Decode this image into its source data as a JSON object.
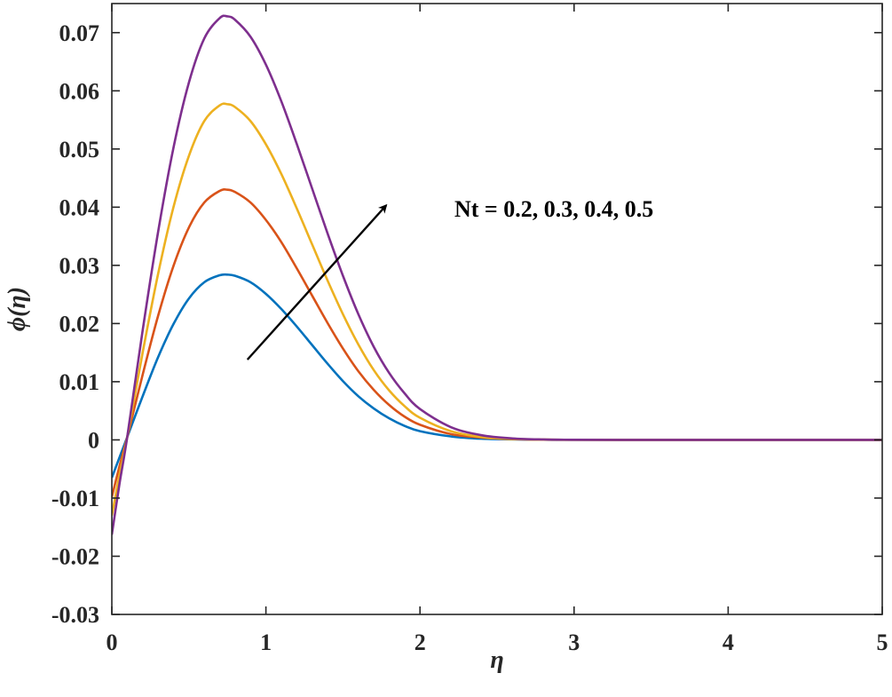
{
  "chart_data": {
    "type": "line",
    "title": "",
    "xlabel": "η",
    "ylabel": "ϕ(η)",
    "xlim": [
      0,
      5
    ],
    "ylim": [
      -0.03,
      0.075
    ],
    "x_ticks": [
      0,
      1,
      2,
      3,
      4,
      5
    ],
    "x_tick_labels": [
      "0",
      "1",
      "2",
      "3",
      "4",
      "5"
    ],
    "y_ticks": [
      -0.03,
      -0.02,
      -0.01,
      0,
      0.01,
      0.02,
      0.03,
      0.04,
      0.05,
      0.06,
      0.07
    ],
    "y_tick_labels": [
      "-0.03",
      "-0.02",
      "-0.01",
      "0",
      "0.01",
      "0.02",
      "0.03",
      "0.04",
      "0.05",
      "0.06",
      "0.07"
    ],
    "grid": false,
    "legend": "none",
    "annotation": {
      "text": "Nt = 0.2, 0.3, 0.4, 0.5",
      "arrow_from": [
        0.88,
        0.0138
      ],
      "arrow_to": [
        1.78,
        0.0403
      ]
    },
    "series": [
      {
        "color": "#0072BD",
        "x": [
          0,
          0.05,
          0.1,
          0.2,
          0.3,
          0.4,
          0.5,
          0.6,
          0.7,
          0.75,
          0.8,
          0.9,
          1.0,
          1.1,
          1.2,
          1.3,
          1.4,
          1.5,
          1.6,
          1.7,
          1.8,
          1.9,
          2.0,
          2.2,
          2.4,
          2.6,
          2.8,
          3.0,
          3.5,
          4.0,
          4.5,
          5.0
        ],
        "y": [
          -0.0065,
          -0.003,
          0.0005,
          0.0075,
          0.0142,
          0.0199,
          0.0243,
          0.0271,
          0.0283,
          0.0284,
          0.0282,
          0.0271,
          0.0251,
          0.0225,
          0.0195,
          0.0163,
          0.0131,
          0.0101,
          0.0075,
          0.0054,
          0.0037,
          0.0024,
          0.0015,
          0.0006,
          0.0002,
          0.0001,
          3e-05,
          1e-05,
          0,
          0,
          0,
          0
        ]
      },
      {
        "color": "#D95319",
        "x": [
          0,
          0.05,
          0.1,
          0.2,
          0.3,
          0.4,
          0.5,
          0.6,
          0.7,
          0.75,
          0.8,
          0.9,
          1.0,
          1.1,
          1.2,
          1.3,
          1.4,
          1.5,
          1.6,
          1.7,
          1.8,
          1.9,
          2.0,
          2.2,
          2.4,
          2.6,
          2.8,
          3.0,
          3.5,
          4.0,
          4.5,
          5.0
        ],
        "y": [
          -0.0098,
          -0.0045,
          0.0005,
          0.0112,
          0.0213,
          0.0299,
          0.0365,
          0.0408,
          0.0428,
          0.043,
          0.0426,
          0.0408,
          0.0378,
          0.034,
          0.0295,
          0.0248,
          0.0201,
          0.0157,
          0.0118,
          0.0086,
          0.006,
          0.004,
          0.0026,
          0.001,
          0.0004,
          0.00013,
          4e-05,
          1e-05,
          0,
          0,
          0,
          0
        ]
      },
      {
        "color": "#EDB120",
        "x": [
          0,
          0.05,
          0.1,
          0.2,
          0.3,
          0.4,
          0.5,
          0.6,
          0.7,
          0.75,
          0.8,
          0.9,
          1.0,
          1.1,
          1.2,
          1.3,
          1.4,
          1.5,
          1.6,
          1.7,
          1.8,
          1.9,
          2.0,
          2.2,
          2.4,
          2.6,
          2.8,
          3.0,
          3.5,
          4.0,
          4.5,
          5.0
        ],
        "y": [
          -0.013,
          -0.006,
          0.0005,
          0.015,
          0.0285,
          0.04,
          0.0488,
          0.0548,
          0.0575,
          0.0577,
          0.0572,
          0.0548,
          0.0508,
          0.0457,
          0.0398,
          0.0336,
          0.0274,
          0.0216,
          0.0164,
          0.012,
          0.0085,
          0.0058,
          0.0038,
          0.0015,
          0.0005,
          0.00017,
          5e-05,
          1e-05,
          0,
          0,
          0,
          0
        ]
      },
      {
        "color": "#7E2F8E",
        "x": [
          0,
          0.05,
          0.1,
          0.2,
          0.3,
          0.4,
          0.5,
          0.6,
          0.7,
          0.75,
          0.8,
          0.9,
          1.0,
          1.1,
          1.2,
          1.3,
          1.4,
          1.5,
          1.6,
          1.7,
          1.8,
          1.9,
          2.0,
          2.2,
          2.4,
          2.6,
          2.8,
          3.0,
          3.5,
          4.0,
          4.5,
          5.0
        ],
        "y": [
          -0.0163,
          -0.0075,
          0.0005,
          0.0188,
          0.0357,
          0.0502,
          0.0614,
          0.069,
          0.0725,
          0.0728,
          0.0722,
          0.0693,
          0.0645,
          0.0582,
          0.0509,
          0.0432,
          0.0355,
          0.0282,
          0.0216,
          0.016,
          0.0115,
          0.008,
          0.0053,
          0.0022,
          0.0008,
          0.00025,
          7e-05,
          2e-05,
          0,
          0,
          0,
          0
        ]
      }
    ]
  }
}
